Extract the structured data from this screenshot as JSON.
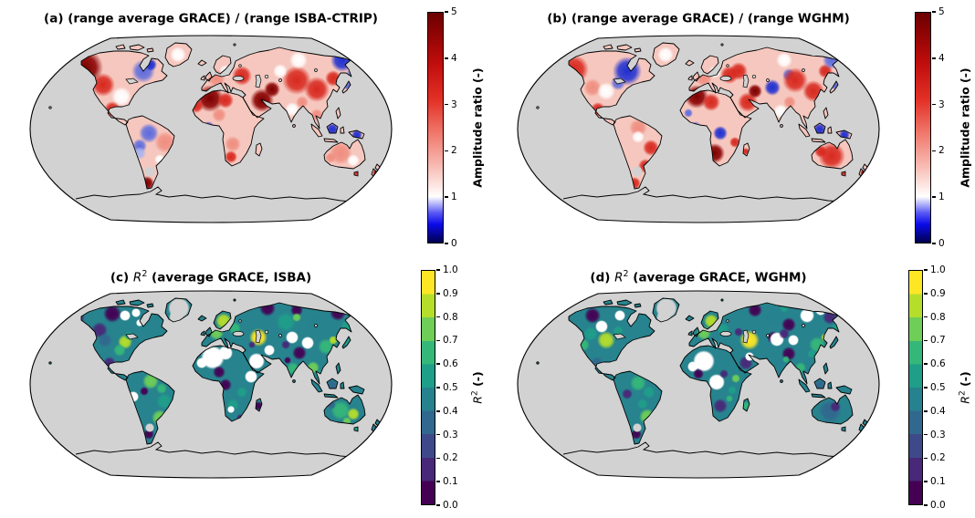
{
  "figure": {
    "background_color": "#ffffff",
    "ocean_color": "#d2d2d2",
    "coastline_color": "#000000",
    "panels": [
      {
        "id": "a",
        "title_parts": {
          "prefix": "(a) (range average GRACE) / (range ISBA-CTRIP)",
          "var": "",
          "sup": "",
          "rest": ""
        },
        "colorbar": {
          "label_prefix": "Amplitude ratio (-)",
          "label_var": "",
          "label_sup": "",
          "label_rest": "",
          "ticks": [
            "5",
            "4",
            "3",
            "2",
            "1",
            "0"
          ],
          "range_min": 0,
          "range_max": 5,
          "gradient_stops": [
            [
              0,
              "#00004d"
            ],
            [
              0.08,
              "#0b0bea"
            ],
            [
              0.13,
              "#5a5af5"
            ],
            [
              0.2,
              "#ffffff"
            ],
            [
              0.33,
              "#f8bcb4"
            ],
            [
              0.48,
              "#f0766a"
            ],
            [
              0.62,
              "#e33127"
            ],
            [
              0.78,
              "#c00d0d"
            ],
            [
              0.9,
              "#930404"
            ],
            [
              1,
              "#6c0000"
            ]
          ]
        }
      },
      {
        "id": "b",
        "title_parts": {
          "prefix": "(b) (range average GRACE) / (range WGHM)",
          "var": "",
          "sup": "",
          "rest": ""
        },
        "colorbar": {
          "label_prefix": "Amplitude ratio (-)",
          "label_var": "",
          "label_sup": "",
          "label_rest": "",
          "ticks": [
            "5",
            "4",
            "3",
            "2",
            "1",
            "0"
          ],
          "range_min": 0,
          "range_max": 5,
          "gradient_stops": [
            [
              0,
              "#00004d"
            ],
            [
              0.08,
              "#0b0bea"
            ],
            [
              0.13,
              "#5a5af5"
            ],
            [
              0.2,
              "#ffffff"
            ],
            [
              0.33,
              "#f8bcb4"
            ],
            [
              0.48,
              "#f0766a"
            ],
            [
              0.62,
              "#e33127"
            ],
            [
              0.78,
              "#c00d0d"
            ],
            [
              0.9,
              "#930404"
            ],
            [
              1,
              "#6c0000"
            ]
          ]
        }
      },
      {
        "id": "c",
        "title_parts": {
          "prefix": "(c) ",
          "var": "R",
          "sup": "2",
          "rest": " (average GRACE, ISBA)"
        },
        "colorbar": {
          "label_prefix": "",
          "label_var": "R",
          "label_sup": "2",
          "label_rest": " (-)",
          "ticks": [
            "1.0",
            "0.9",
            "0.8",
            "0.7",
            "0.6",
            "0.5",
            "0.4",
            "0.3",
            "0.2",
            "0.1",
            "0.0"
          ],
          "range_min": 0,
          "range_max": 1,
          "discrete_colors": [
            "#440154",
            "#482878",
            "#3e4989",
            "#31688e",
            "#26828e",
            "#1f9e89",
            "#35b779",
            "#6ece58",
            "#b5de2b",
            "#fde725"
          ]
        }
      },
      {
        "id": "d",
        "title_parts": {
          "prefix": "(d) ",
          "var": "R",
          "sup": "2",
          "rest": " (average GRACE, WGHM)"
        },
        "colorbar": {
          "label_prefix": "",
          "label_var": "R",
          "label_sup": "2",
          "label_rest": " (-)",
          "ticks": [
            "1.0",
            "0.9",
            "0.8",
            "0.7",
            "0.6",
            "0.5",
            "0.4",
            "0.3",
            "0.2",
            "0.1",
            "0.0"
          ],
          "range_min": 0,
          "range_max": 1,
          "discrete_colors": [
            "#440154",
            "#482878",
            "#3e4989",
            "#31688e",
            "#26828e",
            "#1f9e89",
            "#35b779",
            "#6ece58",
            "#b5de2b",
            "#fde725"
          ]
        }
      }
    ]
  },
  "chart_data": [
    {
      "type": "heatmap",
      "panel": "a",
      "title": "(a) (range average GRACE) / (range ISBA-CTRIP)",
      "layout": "Robinson-projection world map, gray ocean, black coastlines",
      "colorbar_label": "Amplitude ratio (-)",
      "axis_range": [
        0,
        5
      ],
      "colorbar_ticks": [
        0,
        1,
        2,
        3,
        4,
        5
      ],
      "colormap": "diverging blue-white-red, white centered at ratio 1",
      "high_ratio_regions": [
        "Alaska / NW Canada",
        "western Sahara",
        "Arabian Peninsula",
        "Iran",
        "central Asia",
        "western Russia",
        "Patagonia tip",
        "New Zealand"
      ],
      "low_ratio_regions": [
        "Hudson Bay area",
        "NE Siberia",
        "Borneo",
        "New Guinea",
        "western Amazon",
        "central Africa"
      ],
      "masked_gray_regions": [
        "Greenland interior",
        "Antarctica",
        "southern Argentina patch"
      ]
    },
    {
      "type": "heatmap",
      "panel": "b",
      "title": "(b) (range average GRACE) / (range WGHM)",
      "layout": "Robinson-projection world map, gray ocean, black coastlines",
      "colorbar_label": "Amplitude ratio (-)",
      "axis_range": [
        0,
        5
      ],
      "colorbar_ticks": [
        0,
        1,
        2,
        3,
        4,
        5
      ],
      "colormap": "diverging blue-white-red, white centered at ratio 1",
      "high_ratio_regions": [
        "Alaska",
        "Sahara",
        "SW Africa",
        "Arabian Peninsula",
        "central Asia",
        "Siberia",
        "Australia",
        "SE South America",
        "New Zealand"
      ],
      "low_ratio_regions": [
        "Hudson Bay area (strong)",
        "Kazakhstan blue spot",
        "Borneo",
        "New Guinea",
        "Congo basin"
      ],
      "masked_gray_regions": [
        "Greenland interior",
        "Antarctica",
        "southern Argentina patch"
      ]
    },
    {
      "type": "heatmap",
      "panel": "c",
      "title": "(c) R^2 (average GRACE, ISBA)",
      "layout": "Robinson-projection world map, gray ocean, black coastlines",
      "colorbar_label": "R^2 (-)",
      "axis_range": [
        0,
        1
      ],
      "colorbar_ticks": [
        0.0,
        0.1,
        0.2,
        0.3,
        0.4,
        0.5,
        0.6,
        0.7,
        0.8,
        0.9,
        1.0
      ],
      "colormap": "viridis, 10 discrete bins",
      "high_r2_regions": [
        "eastern US",
        "Scandinavia",
        "ring around Caspian Sea",
        "northern South America",
        "SE South America",
        "eastern Australia",
        "eastern China",
        "SE Asia"
      ],
      "low_r2_regions": [
        "northern Canada",
        "Alaska",
        "arctic Russia",
        "Tibet",
        "Congo",
        "Sahel",
        "Patagonia",
        "Madagascar"
      ],
      "masked_white_regions": [
        "Sahara",
        "Arabian Peninsula",
        "east Africa patch",
        "central Asia deserts",
        "Peru patch",
        "arctic Canada patches"
      ]
    },
    {
      "type": "heatmap",
      "panel": "d",
      "title": "(d) R^2 (average GRACE, WGHM)",
      "layout": "Robinson-projection world map, gray ocean, black coastlines",
      "colorbar_label": "R^2 (-)",
      "axis_range": [
        0,
        1
      ],
      "colorbar_ticks": [
        0.0,
        0.1,
        0.2,
        0.3,
        0.4,
        0.5,
        0.6,
        0.7,
        0.8,
        0.9,
        1.0
      ],
      "colormap": "viridis, 10 discrete bins",
      "high_r2_regions": [
        "central US",
        "Scandinavia",
        "large yellow ring around Caspian Sea",
        "SE South America",
        "eastern China",
        "east Africa spot"
      ],
      "low_r2_regions": [
        "northern Canada",
        "arctic Russia",
        "Tibet",
        "western Amazon spot",
        "southern Africa",
        "central Australia",
        "Patagonia"
      ],
      "masked_white_regions": [
        "Sahara",
        "Congo basin patch",
        "Kazakhstan patches",
        "NE Siberia patches",
        "Arabia patch"
      ]
    }
  ]
}
